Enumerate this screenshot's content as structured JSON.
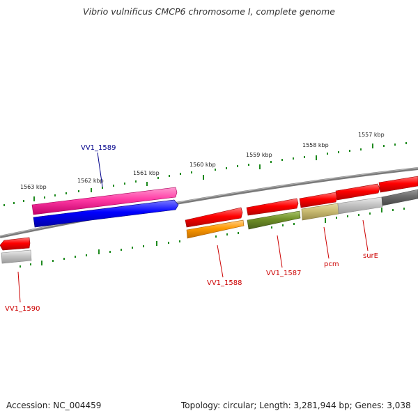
{
  "title": "Vibrio vulnificus CMCP6 chromosome I, complete genome",
  "footer": {
    "accession": "Accession: NC_004459",
    "summary": "Topology: circular; Length: 3,281,944 bp; Genes: 3,038"
  },
  "ruler": {
    "ticks": [
      "1557 kbp",
      "1558 kbp",
      "1559 kbp",
      "1560 kbp",
      "1561 kbp",
      "1562 kbp",
      "1563 kbp"
    ]
  },
  "colors": {
    "backbone": "#7a7a7a",
    "ruler": "#1e8a1e",
    "label_red": "#cc0000",
    "label_blue": "#00008b"
  },
  "features": [
    {
      "id": "vv1-1589",
      "label": "VV1_1589",
      "label_color": "#00008b"
    },
    {
      "id": "vv1-1588",
      "label": "VV1_1588",
      "label_color": "#cc0000"
    },
    {
      "id": "vv1-1587",
      "label": "VV1_1587",
      "label_color": "#cc0000"
    },
    {
      "id": "pcm",
      "label": "pcm",
      "label_color": "#cc0000"
    },
    {
      "id": "sure",
      "label": "surE",
      "label_color": "#cc0000"
    },
    {
      "id": "vv1-1590",
      "label": "VV1_1590",
      "label_color": "#cc0000"
    }
  ]
}
